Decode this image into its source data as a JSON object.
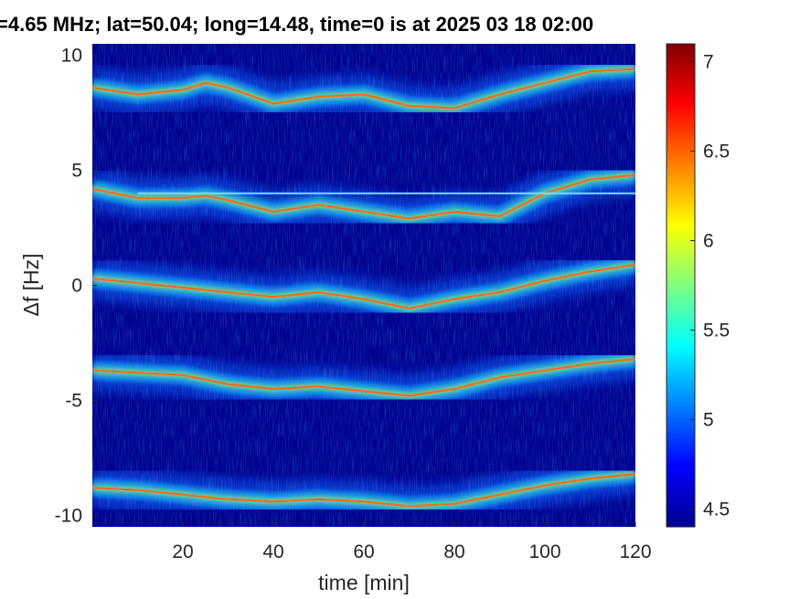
{
  "chart_data": {
    "type": "heatmap",
    "title": "=4.65 MHz;  lat=50.04; long=14.48, time=0 is at 2025 03 18 02:00",
    "xlabel": "time [min]",
    "ylabel": "Δf [Hz]",
    "xlim": [
      0,
      120
    ],
    "ylim": [
      -10.5,
      10.5
    ],
    "x_ticks": [
      20,
      40,
      60,
      80,
      100,
      120
    ],
    "x_tick_labels": [
      "20",
      "40",
      "60",
      "80",
      "100",
      "120"
    ],
    "y_ticks": [
      10,
      5,
      0,
      -5,
      -10
    ],
    "y_tick_labels": [
      "10",
      "5",
      "0",
      "-5",
      "-10"
    ],
    "colormap": "jet",
    "background_color": "#00008f",
    "colorbar": {
      "range": [
        4.4,
        7.1
      ],
      "ticks": [
        7,
        6.5,
        6,
        5.5,
        5,
        4.5
      ],
      "tick_labels": [
        "7",
        "6.5",
        "6",
        "5.5",
        "5",
        "4.5"
      ]
    },
    "constant_line": {
      "y": 4.0,
      "x_range": [
        10,
        120
      ],
      "color": "#7fd8f0"
    },
    "bands": [
      {
        "name": "band +8.5 Hz",
        "x": [
          0,
          10,
          20,
          25,
          30,
          40,
          50,
          60,
          70,
          80,
          90,
          100,
          110,
          120
        ],
        "y": [
          8.6,
          8.3,
          8.5,
          8.8,
          8.6,
          7.9,
          8.2,
          8.3,
          7.8,
          7.7,
          8.3,
          8.8,
          9.3,
          9.4
        ]
      },
      {
        "name": "band +4 Hz",
        "x": [
          0,
          10,
          20,
          25,
          30,
          40,
          50,
          60,
          70,
          80,
          90,
          100,
          110,
          120
        ],
        "y": [
          4.2,
          3.8,
          3.8,
          3.9,
          3.7,
          3.2,
          3.5,
          3.2,
          2.9,
          3.2,
          3.0,
          4.0,
          4.6,
          4.8
        ]
      },
      {
        "name": "band 0 Hz",
        "x": [
          0,
          10,
          20,
          25,
          30,
          40,
          50,
          60,
          70,
          80,
          90,
          100,
          110,
          120
        ],
        "y": [
          0.3,
          0.1,
          -0.1,
          -0.2,
          -0.3,
          -0.5,
          -0.3,
          -0.6,
          -1.0,
          -0.6,
          -0.3,
          0.2,
          0.6,
          0.9
        ]
      },
      {
        "name": "band -4 Hz",
        "x": [
          0,
          10,
          20,
          25,
          30,
          40,
          50,
          60,
          70,
          80,
          90,
          100,
          110,
          120
        ],
        "y": [
          -3.7,
          -3.8,
          -3.9,
          -4.1,
          -4.3,
          -4.5,
          -4.4,
          -4.6,
          -4.8,
          -4.5,
          -4.0,
          -3.7,
          -3.4,
          -3.2
        ]
      },
      {
        "name": "band -9 Hz",
        "x": [
          0,
          10,
          20,
          25,
          30,
          40,
          50,
          60,
          70,
          80,
          90,
          100,
          110,
          120
        ],
        "y": [
          -8.8,
          -8.9,
          -9.1,
          -9.2,
          -9.3,
          -9.4,
          -9.3,
          -9.4,
          -9.6,
          -9.5,
          -9.1,
          -8.7,
          -8.4,
          -8.2
        ]
      }
    ]
  }
}
